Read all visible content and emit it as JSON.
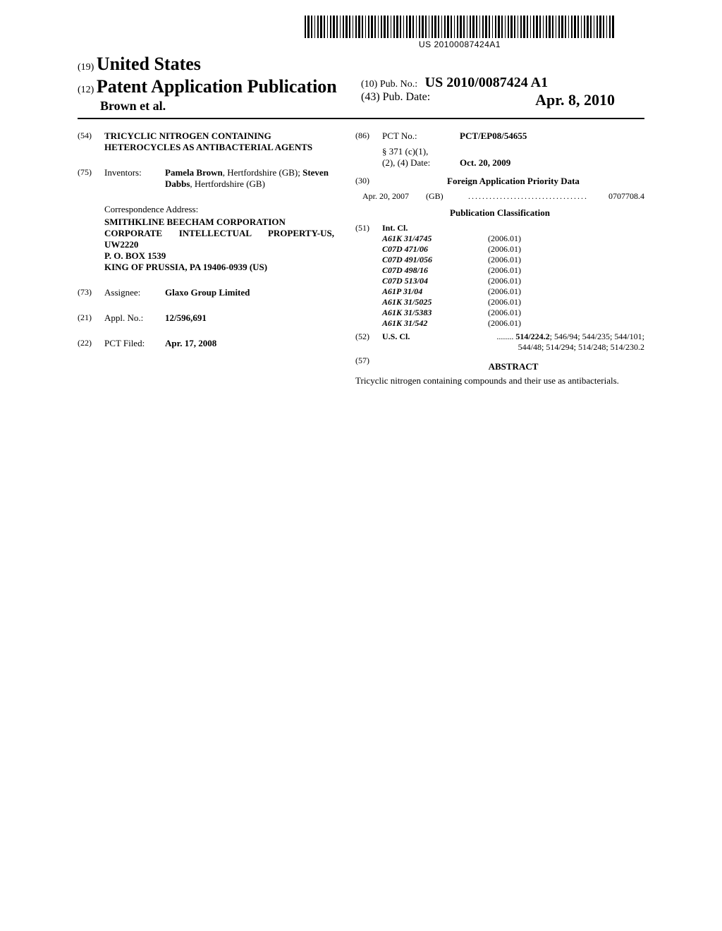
{
  "barcode_text": "US 20100087424A1",
  "header": {
    "code19": "(19)",
    "country": "United States",
    "code12": "(12)",
    "doc_type": "Patent Application Publication",
    "authors": "Brown et al.",
    "code10": "(10)",
    "pub_no_label": "Pub. No.:",
    "pub_no": "US 2010/0087424 A1",
    "code43": "(43)",
    "pub_date_label": "Pub. Date:",
    "pub_date": "Apr. 8, 2010"
  },
  "left": {
    "title": {
      "num": "(54)",
      "text": "TRICYCLIC NITROGEN CONTAINING HETEROCYCLES AS ANTIBACTERIAL AGENTS"
    },
    "inventors": {
      "num": "(75)",
      "label": "Inventors:",
      "list": "Pamela Brown, Hertfordshire (GB); Steven Dabbs, Hertfordshire (GB)",
      "name1": "Pamela Brown",
      "loc1": ", Hertfordshire (GB); ",
      "name2": "Steven Dabbs",
      "loc2": ", Hertfordshire (GB)"
    },
    "correspondence": {
      "label": "Correspondence Address:",
      "line1": "SMITHKLINE BEECHAM CORPORATION",
      "line2": "CORPORATE INTELLECTUAL PROPERTY-US, UW2220",
      "line3": "P. O. BOX 1539",
      "line4": "KING OF PRUSSIA, PA 19406-0939 (US)"
    },
    "assignee": {
      "num": "(73)",
      "label": "Assignee:",
      "value": "Glaxo Group Limited"
    },
    "appl_no": {
      "num": "(21)",
      "label": "Appl. No.:",
      "value": "12/596,691"
    },
    "pct_filed": {
      "num": "(22)",
      "label": "PCT Filed:",
      "value": "Apr. 17, 2008"
    }
  },
  "right": {
    "pct_no": {
      "num": "(86)",
      "label": "PCT No.:",
      "value": "PCT/EP08/54655"
    },
    "s371": {
      "label1": "§ 371 (c)(1),",
      "label2": "(2), (4) Date:",
      "value": "Oct. 20, 2009"
    },
    "foreign": {
      "num": "(30)",
      "heading": "Foreign Application Priority Data",
      "date": "Apr. 20, 2007",
      "country": "(GB)",
      "dots": "..................................",
      "number": "0707708.4"
    },
    "pub_class_heading": "Publication Classification",
    "intcl": {
      "num": "(51)",
      "label": "Int. Cl.",
      "rows": [
        {
          "code": "A61K 31/4745",
          "ver": "(2006.01)"
        },
        {
          "code": "C07D 471/06",
          "ver": "(2006.01)"
        },
        {
          "code": "C07D 491/056",
          "ver": "(2006.01)"
        },
        {
          "code": "C07D 498/16",
          "ver": "(2006.01)"
        },
        {
          "code": "C07D 513/04",
          "ver": "(2006.01)"
        },
        {
          "code": "A61P 31/04",
          "ver": "(2006.01)"
        },
        {
          "code": "A61K 31/5025",
          "ver": "(2006.01)"
        },
        {
          "code": "A61K 31/5383",
          "ver": "(2006.01)"
        },
        {
          "code": "A61K 31/542",
          "ver": "(2006.01)"
        }
      ]
    },
    "uscl": {
      "num": "(52)",
      "label": "U.S. Cl.",
      "dots": " ........ ",
      "line1": "514/224.2; 546/94; 544/235; 544/101;",
      "line2": "544/48; 514/294; 514/248; 514/230.2",
      "bold_first": "514/224.2"
    },
    "abstract": {
      "num": "(57)",
      "heading": "ABSTRACT",
      "body": "Tricyclic nitrogen containing compounds and their use as antibacterials."
    }
  }
}
